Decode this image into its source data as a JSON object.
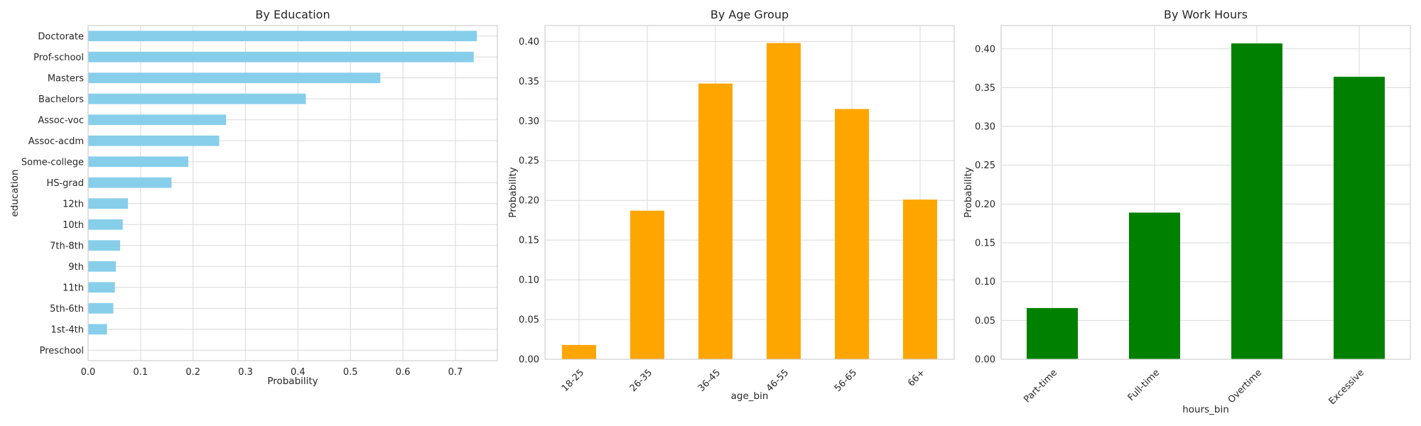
{
  "chart_data": [
    {
      "type": "bar",
      "orientation": "horizontal",
      "title": "By Education",
      "xlabel": "Probability",
      "ylabel": "education",
      "xlim": [
        0,
        0.78
      ],
      "xticks": [
        0.0,
        0.1,
        0.2,
        0.3,
        0.4,
        0.5,
        0.6,
        0.7
      ],
      "tick_labels": [
        "0.0",
        "0.1",
        "0.2",
        "0.3",
        "0.4",
        "0.5",
        "0.6",
        "0.7"
      ],
      "categories": [
        "Doctorate",
        "Prof-school",
        "Masters",
        "Bachelors",
        "Assoc-voc",
        "Assoc-acdm",
        "Some-college",
        "HS-grad",
        "12th",
        "10th",
        "7th-8th",
        "9th",
        "11th",
        "5th-6th",
        "1st-4th",
        "Preschool"
      ],
      "values": [
        0.741,
        0.735,
        0.557,
        0.415,
        0.263,
        0.25,
        0.191,
        0.159,
        0.076,
        0.066,
        0.061,
        0.053,
        0.051,
        0.048,
        0.036,
        0.0
      ],
      "color": "#87ceeb",
      "grid": true
    },
    {
      "type": "bar",
      "title": "By Age Group",
      "xlabel": "age_bin",
      "ylabel": "Probability",
      "ylim": [
        0,
        0.42
      ],
      "yticks": [
        0.0,
        0.05,
        0.1,
        0.15,
        0.2,
        0.25,
        0.3,
        0.35,
        0.4
      ],
      "tick_labels": [
        "0.00",
        "0.05",
        "0.10",
        "0.15",
        "0.20",
        "0.25",
        "0.30",
        "0.35",
        "0.40"
      ],
      "categories": [
        "18-25",
        "26-35",
        "36-45",
        "46-55",
        "56-65",
        "66+"
      ],
      "values": [
        0.018,
        0.187,
        0.347,
        0.398,
        0.315,
        0.201
      ],
      "color": "#ffa500",
      "grid": true
    },
    {
      "type": "bar",
      "title": "By Work Hours",
      "xlabel": "hours_bin",
      "ylabel": "Probability",
      "ylim": [
        0,
        0.43
      ],
      "yticks": [
        0.0,
        0.05,
        0.1,
        0.15,
        0.2,
        0.25,
        0.3,
        0.35,
        0.4
      ],
      "tick_labels": [
        "0.00",
        "0.05",
        "0.10",
        "0.15",
        "0.20",
        "0.25",
        "0.30",
        "0.35",
        "0.40"
      ],
      "categories": [
        "Part-time",
        "Full-time",
        "Overtime",
        "Excessive"
      ],
      "values": [
        0.066,
        0.189,
        0.407,
        0.364
      ],
      "color": "#008000",
      "grid": true
    }
  ]
}
